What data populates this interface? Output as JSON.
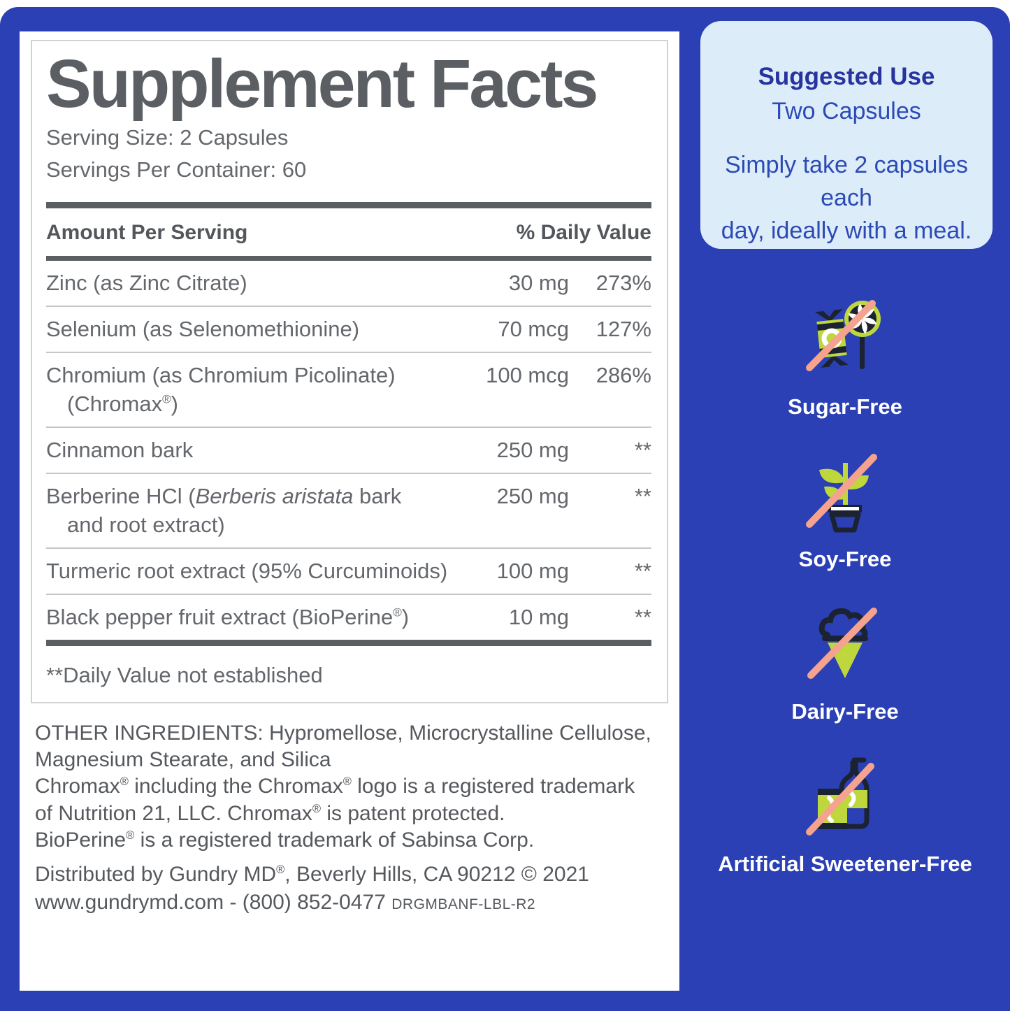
{
  "colors": {
    "background_blue": "#2b40b4",
    "suggested_box_blue": "#ddecf9",
    "suggested_title_blue": "#27349e",
    "suggested_text_blue": "#2c4ab5",
    "label_text_gray": "#64676c",
    "label_dark_gray": "#5b5e62",
    "icon_lime": "#bed73c",
    "icon_navy": "#1b2232",
    "icon_strike_salmon": "#f5a38e"
  },
  "supplement": {
    "title": "Supplement Facts",
    "serving_size": "Serving Size: 2 Capsules",
    "servings_per_container": "Servings Per Container: 60",
    "col1_header": "Amount Per Serving",
    "col2_header": "% Daily Value",
    "rows": [
      {
        "name": "Zinc (as Zinc Citrate)",
        "amount": "30 mg",
        "dv": "273%"
      },
      {
        "name": "Selenium (as Selenomethionine)",
        "amount": "70 mcg",
        "dv": "127%"
      },
      {
        "name": "Chromium (as Chromium Picolinate)",
        "line2": "(Chromax®)",
        "amount": "100 mcg",
        "dv": "286%"
      },
      {
        "name": "Cinnamon bark",
        "amount": "250 mg",
        "dv": "**"
      },
      {
        "pre": "Berberine HCl (",
        "italic": "Berberis aristata",
        "post": " bark",
        "line2": "and root extract)",
        "amount": "250 mg",
        "dv": "**"
      },
      {
        "name": "Turmeric root extract (95% Curcuminoids)",
        "amount": "100 mg",
        "dv": "**"
      },
      {
        "name": "Black pepper fruit extract (BioPerine®)",
        "amount": "10 mg",
        "dv": "**"
      }
    ],
    "footnote": "**Daily Value not established"
  },
  "legal": {
    "other_ingredients": "OTHER INGREDIENTS: Hypromellose, Microcrystalline Cellulose,\nMagnesium Stearate, and Silica",
    "chromax_notice": "Chromax® including the Chromax® logo is a registered trademark\nof Nutrition 21, LLC. Chromax® is patent protected.",
    "bioperine_notice": "BioPerine® is a registered trademark of Sabinsa Corp.",
    "distributed": "Distributed by Gundry MD®, Beverly Hills, CA 90212 © 2021",
    "contact": "www.gundrymd.com - (800) 852-0477",
    "label_code": "DRGMBANF-LBL-R2"
  },
  "suggested_use": {
    "title": "Suggested Use",
    "subtitle": "Two Capsules",
    "body": "Simply take 2 capsules each\nday, ideally with a meal."
  },
  "badges": [
    {
      "icon": "sugar-free-icon",
      "label": "Sugar-Free"
    },
    {
      "icon": "soy-free-icon",
      "label": "Soy-Free"
    },
    {
      "icon": "dairy-free-icon",
      "label": "Dairy-Free"
    },
    {
      "icon": "artificial-sweetener-free-icon",
      "label": "Artificial Sweetener-Free"
    }
  ]
}
